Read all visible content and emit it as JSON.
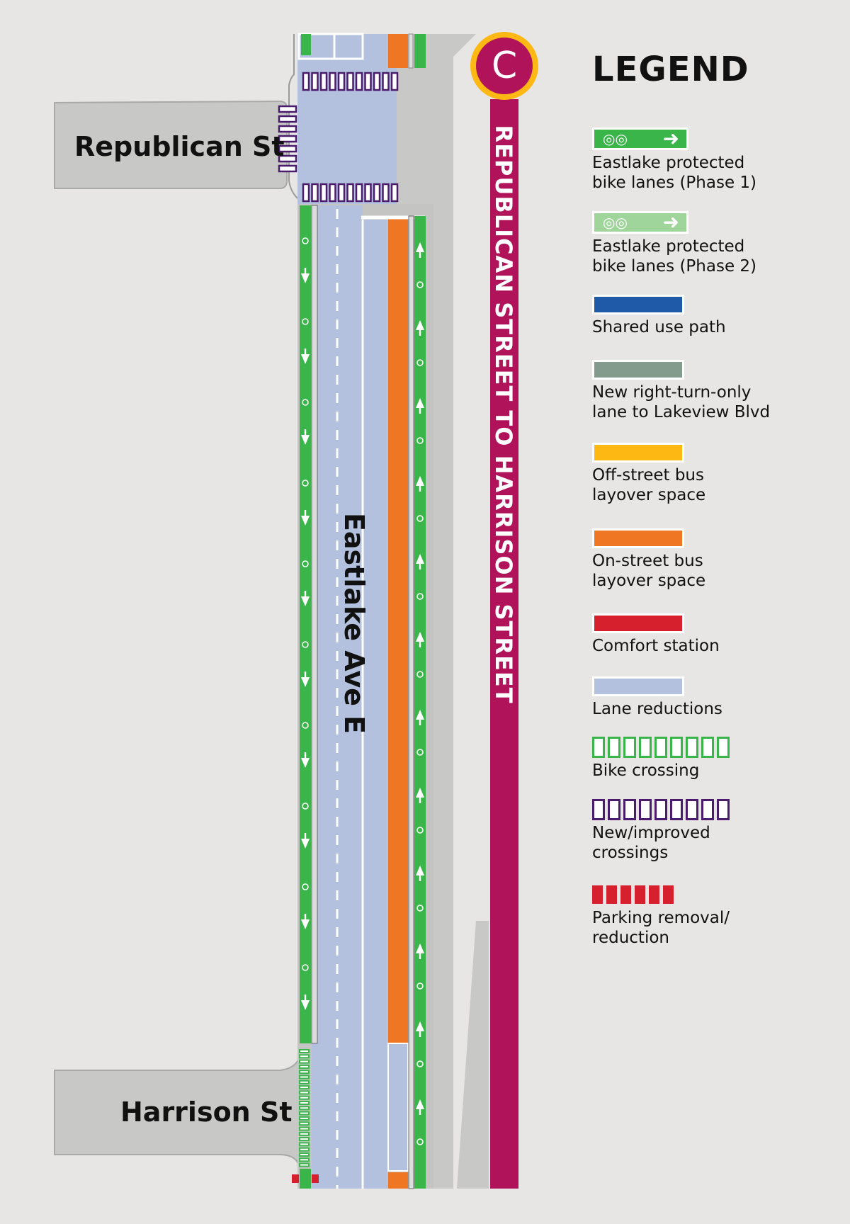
{
  "map": {
    "streets": {
      "republican": "Republican St",
      "harrison": "Harrison St",
      "eastlake": "Eastlake Ave E"
    },
    "segment": {
      "badge_letter": "C",
      "title": "REPUBLICAN STREET TO HARRISON STREET"
    }
  },
  "legend": {
    "title": "LEGEND",
    "items": [
      {
        "label": "Eastlake protected\nbike lanes (Phase 1)",
        "swatch": "bike",
        "color": "#3ab54a"
      },
      {
        "label": "Eastlake protected\nbike lanes (Phase 2)",
        "swatch": "bike",
        "color": "#9fd49a"
      },
      {
        "label": "Shared use path",
        "swatch": "bar",
        "color": "#1f5aa8"
      },
      {
        "label": "New right-turn-only\nlane to Lakeview Blvd",
        "swatch": "bar",
        "color": "#829b8c"
      },
      {
        "label": "Off-street bus\nlayover space",
        "swatch": "bar",
        "color": "#fdb813"
      },
      {
        "label": "On-street bus\nlayover space",
        "swatch": "bar",
        "color": "#ef7622"
      },
      {
        "label": "Comfort station",
        "swatch": "bar",
        "color": "#d6202e"
      },
      {
        "label": "Lane reductions",
        "swatch": "bar",
        "color": "#b3c1de"
      },
      {
        "label": "Bike crossing",
        "swatch": "boxes",
        "color": "#3ab54a"
      },
      {
        "label": "New/improved\ncrossings",
        "swatch": "boxes",
        "color": "#4b1c6b"
      },
      {
        "label": "Parking removal/\nreduction",
        "swatch": "solidboxes",
        "color": "#d6202e"
      }
    ]
  },
  "colors": {
    "background": "#e7e6e4",
    "street": "#c8c8c7",
    "lane_reduction": "#b3c1de",
    "bike_lane": "#3ab54a",
    "bus_layover": "#ef7622",
    "segment_bar": "#b0135a",
    "badge_ring": "#fdb813",
    "crossing": "#4b1c6b",
    "parking_removal": "#d6202e"
  }
}
